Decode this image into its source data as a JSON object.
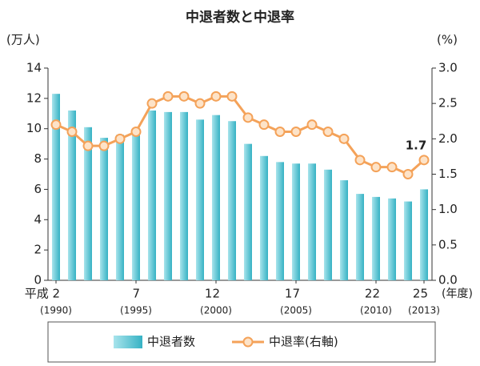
{
  "chart_data": {
    "type": "bar-line",
    "title": "中退者数と中退率",
    "y_label": "(万人)",
    "y2_label": "(%)",
    "x_suffix": "(年度)",
    "categories": [
      "平成 2",
      null,
      null,
      null,
      null,
      "7",
      null,
      null,
      null,
      null,
      "12",
      null,
      null,
      null,
      null,
      "17",
      null,
      null,
      null,
      null,
      "22",
      null,
      null,
      "25"
    ],
    "category_sublabels": [
      "(1990)",
      null,
      null,
      null,
      null,
      "(1995)",
      null,
      null,
      null,
      null,
      "(2000)",
      null,
      null,
      null,
      null,
      "(2005)",
      null,
      null,
      null,
      null,
      "(2010)",
      null,
      null,
      "(2013)"
    ],
    "series": [
      {
        "name": "中退者数",
        "type": "bar",
        "color": "#4dbccb",
        "values": [
          12.3,
          11.2,
          10.1,
          9.4,
          9.6,
          9.9,
          11.2,
          11.1,
          11.1,
          10.6,
          10.9,
          10.5,
          9.0,
          8.2,
          7.8,
          7.7,
          7.7,
          7.3,
          6.6,
          5.7,
          5.5,
          5.4,
          5.2,
          6.0
        ]
      },
      {
        "name": "中退率(右軸)",
        "type": "line",
        "axis": "y2",
        "color": "#f4a259",
        "label_last": true,
        "values": [
          2.2,
          2.1,
          1.9,
          1.9,
          2.0,
          2.1,
          2.5,
          2.6,
          2.6,
          2.5,
          2.6,
          2.6,
          2.3,
          2.2,
          2.1,
          2.1,
          2.2,
          2.1,
          2.0,
          1.7,
          1.6,
          1.6,
          1.5,
          1.7
        ]
      }
    ],
    "ylim": [
      0,
      14
    ],
    "yticks": [
      0,
      2,
      4,
      6,
      8,
      10,
      12,
      14
    ],
    "y2lim": [
      0,
      3
    ],
    "y2ticks": [
      {
        "value": 0,
        "label": "0.0"
      },
      0.5,
      {
        "value": 1,
        "label": "1.0"
      },
      1.5,
      {
        "value": 2,
        "label": "2.0"
      },
      2.5,
      {
        "value": 3,
        "label": "3.0"
      }
    ],
    "grid": false,
    "legend": "bottom"
  }
}
